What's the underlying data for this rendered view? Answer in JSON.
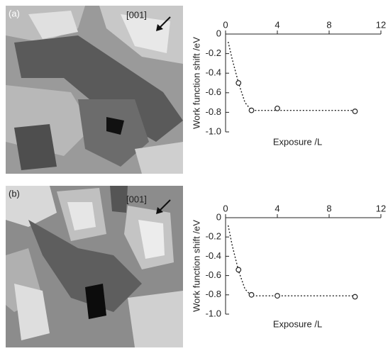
{
  "panels": [
    {
      "label": "(a)",
      "direction": "[001]"
    },
    {
      "label": "(b)",
      "direction": "[001]"
    }
  ],
  "chart_data": [
    {
      "type": "scatter",
      "x_label": "Exposure /L",
      "y_label": "Work function shift /eV",
      "x": [
        1,
        2,
        4,
        10
      ],
      "values": [
        -0.5,
        -0.78,
        -0.76,
        -0.79
      ],
      "fit": {
        "x": [
          0.2,
          0.5,
          1,
          1.5,
          2,
          4,
          6,
          8,
          10
        ],
        "y": [
          -0.08,
          -0.25,
          -0.5,
          -0.7,
          -0.78,
          -0.78,
          -0.78,
          -0.78,
          -0.78
        ]
      },
      "xlim": [
        0,
        12
      ],
      "xticks": [
        0,
        4,
        8,
        12
      ],
      "ylim": [
        -1,
        0
      ],
      "yticks": [
        0,
        -0.2,
        -0.4,
        -0.6,
        -0.8,
        {
          "value": -1,
          "label": "-1.0"
        }
      ]
    },
    {
      "type": "scatter",
      "x_label": "Exposure /L",
      "y_label": "Work function shift /eV",
      "x": [
        1,
        2,
        4,
        10
      ],
      "values": [
        -0.54,
        -0.8,
        -0.81,
        -0.82
      ],
      "fit": {
        "x": [
          0.2,
          0.5,
          1,
          1.5,
          2,
          4,
          6,
          8,
          10
        ],
        "y": [
          -0.08,
          -0.28,
          -0.55,
          -0.74,
          -0.81,
          -0.81,
          -0.81,
          -0.81,
          -0.81
        ]
      },
      "xlim": [
        0,
        12
      ],
      "xticks": [
        0,
        4,
        8,
        12
      ],
      "ylim": [
        -1,
        0
      ],
      "yticks": [
        0,
        -0.2,
        -0.4,
        -0.6,
        -0.8,
        {
          "value": -1,
          "label": "-1.0"
        }
      ]
    }
  ]
}
